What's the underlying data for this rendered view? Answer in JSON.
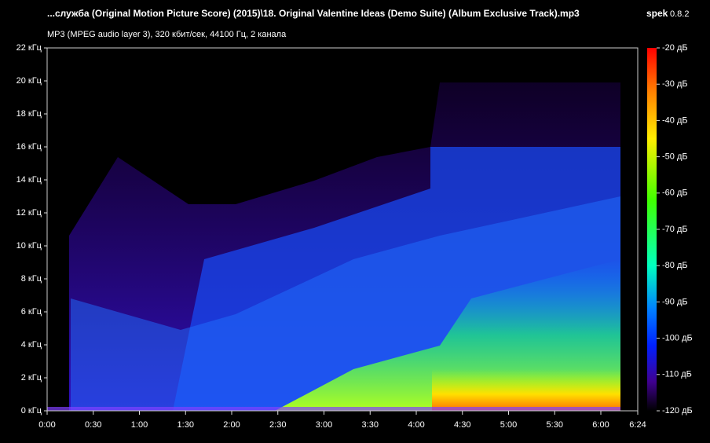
{
  "chart_data": {
    "type": "spectrogram",
    "title": "...служба (Original Motion Picture Score) (2015)\\18. Original Valentine Ideas (Demo Suite) (Album Exclusive Track).mp3",
    "subtitle": "MP3 (MPEG audio layer 3), 320 кбит/сек, 44100 Гц, 2 канала",
    "app": "spek",
    "version": "0.8.2",
    "xlim": [
      0,
      384
    ],
    "xticks": [
      {
        "value": 0,
        "label": "0:00"
      },
      {
        "value": 30,
        "label": "0:30"
      },
      {
        "value": 60,
        "label": "1:00"
      },
      {
        "value": 90,
        "label": "1:30"
      },
      {
        "value": 120,
        "label": "2:00"
      },
      {
        "value": 150,
        "label": "2:30"
      },
      {
        "value": 180,
        "label": "3:00"
      },
      {
        "value": 210,
        "label": "3:30"
      },
      {
        "value": 240,
        "label": "4:00"
      },
      {
        "value": 270,
        "label": "4:30"
      },
      {
        "value": 300,
        "label": "5:00"
      },
      {
        "value": 330,
        "label": "5:30"
      },
      {
        "value": 360,
        "label": "6:00"
      },
      {
        "value": 384,
        "label": "6:24"
      }
    ],
    "ylim": [
      0,
      22
    ],
    "yticks": [
      {
        "value": 0,
        "label": "0 кГц"
      },
      {
        "value": 2,
        "label": "2 кГц"
      },
      {
        "value": 4,
        "label": "4 кГц"
      },
      {
        "value": 6,
        "label": "6 кГц"
      },
      {
        "value": 8,
        "label": "8 кГц"
      },
      {
        "value": 10,
        "label": "10 кГц"
      },
      {
        "value": 12,
        "label": "12 кГц"
      },
      {
        "value": 14,
        "label": "14 кГц"
      },
      {
        "value": 16,
        "label": "16 кГц"
      },
      {
        "value": 18,
        "label": "18 кГц"
      },
      {
        "value": 20,
        "label": "20 кГц"
      },
      {
        "value": 22,
        "label": "22 кГц"
      }
    ],
    "zlim": [
      -120,
      -20
    ],
    "zticks": [
      {
        "value": -20,
        "label": "-20 дБ"
      },
      {
        "value": -30,
        "label": "-30 дБ"
      },
      {
        "value": -40,
        "label": "-40 дБ"
      },
      {
        "value": -50,
        "label": "-50 дБ"
      },
      {
        "value": -60,
        "label": "-60 дБ"
      },
      {
        "value": -70,
        "label": "-70 дБ"
      },
      {
        "value": -80,
        "label": "-80 дБ"
      },
      {
        "value": -90,
        "label": "-90 дБ"
      },
      {
        "value": -100,
        "label": "-100 дБ"
      },
      {
        "value": -110,
        "label": "-110 дБ"
      },
      {
        "value": -120,
        "label": "-120 дБ"
      }
    ]
  }
}
